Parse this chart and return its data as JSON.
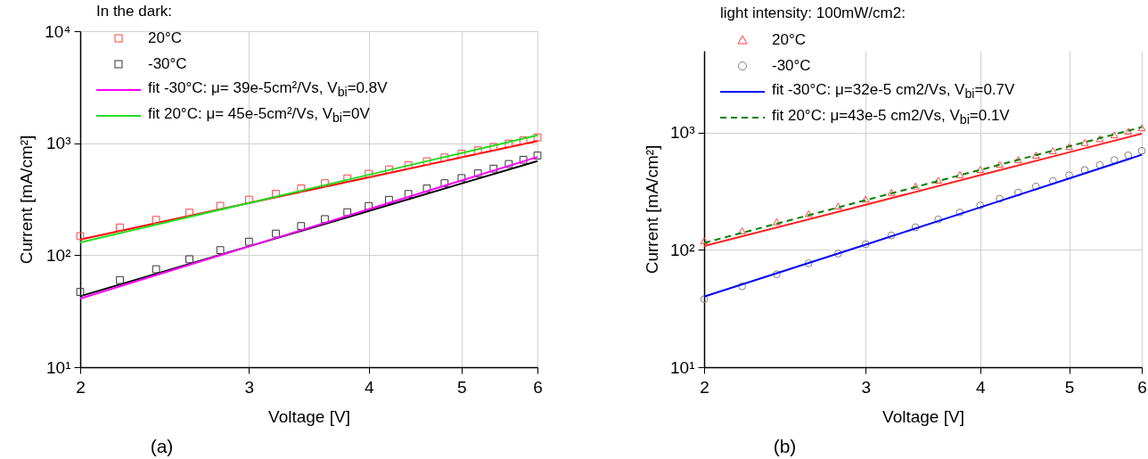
{
  "chart_data": [
    {
      "type": "scatter",
      "title": "(a)",
      "xlabel": "Voltage [V]",
      "ylabel": "Current [mA/cm²]",
      "legend_title": "In the dark:",
      "legend": "top left",
      "grid": true,
      "log": "xy",
      "xlim": [
        2,
        6
      ],
      "xticks": [
        2,
        3,
        4,
        5,
        6
      ],
      "ylim": [
        10,
        10000
      ],
      "yticks": [
        {
          "value": 10,
          "label": "10¹"
        },
        {
          "value": 100,
          "label": "10²"
        },
        {
          "value": 1000,
          "label": "10³"
        },
        {
          "value": 10000,
          "label": "10⁴"
        }
      ],
      "series": [
        {
          "type": "line",
          "color": "#ff0000",
          "x": [
            2,
            3,
            4,
            5,
            6
          ],
          "values": [
            138,
            292,
            495,
            748,
            1047
          ]
        },
        {
          "type": "line",
          "color": "#000000",
          "x": [
            2,
            3,
            4,
            5,
            6
          ],
          "values": [
            43,
            120,
            248,
            437,
            693
          ]
        },
        {
          "name": "20°C",
          "marker": "square",
          "color": "#ff4040",
          "x": [
            2.0,
            2.2,
            2.4,
            2.6,
            2.8,
            3.0,
            3.2,
            3.4,
            3.6,
            3.8,
            4.0,
            4.2,
            4.4,
            4.6,
            4.8,
            5.0,
            5.2,
            5.4,
            5.6,
            5.8,
            6.0
          ],
          "values": [
            148,
            177,
            207,
            240,
            276,
            313,
            353,
            395,
            439,
            485,
            533,
            583,
            635,
            690,
            746,
            805,
            865,
            927,
            993,
            1059,
            1127
          ]
        },
        {
          "name": "-30°C",
          "marker": "square",
          "color": "#333333",
          "x": [
            2.0,
            2.2,
            2.4,
            2.6,
            2.8,
            3.0,
            3.2,
            3.4,
            3.6,
            3.8,
            4.0,
            4.2,
            4.4,
            4.6,
            4.8,
            5.0,
            5.2,
            5.4,
            5.6,
            5.8,
            6.0
          ],
          "values": [
            47,
            60,
            75,
            92,
            111,
            132,
            156,
            182,
            210,
            242,
            275,
            312,
            352,
            394,
            439,
            488,
            538,
            593,
            652,
            711,
            776
          ]
        },
        {
          "name": "fit -30°C: μ= 39e-5cm²/Vs, V$_{bi}$=0.8V",
          "type": "line",
          "line_style": "solid",
          "color": "#ff00ff",
          "x": [
            2,
            3,
            4,
            5,
            6
          ],
          "values": [
            41,
            120,
            257,
            465,
            753
          ]
        },
        {
          "name": "fit 20°C: μ= 45e-5cm²/Vs, V$_{bi}$=0V",
          "type": "line",
          "line_style": "solid",
          "color": "#22dd22",
          "x": [
            2,
            3,
            4,
            5,
            6
          ],
          "values": [
            130,
            293,
            522,
            817,
            1178
          ]
        }
      ]
    },
    {
      "type": "scatter",
      "title": "(b)",
      "xlabel": "Voltage [V]",
      "ylabel": "Current [mA/cm²]",
      "legend_title": "light intensity: 100mW/cm2:",
      "legend": "top left",
      "grid": true,
      "log": "xy",
      "xlim": [
        2,
        6
      ],
      "xticks": [
        2,
        3,
        4,
        5,
        6
      ],
      "ylim": [
        10,
        5000
      ],
      "yticks": [
        {
          "value": 10,
          "label": "10¹"
        },
        {
          "value": 100,
          "label": "10²"
        },
        {
          "value": 1000,
          "label": "10³"
        }
      ],
      "series": [
        {
          "type": "line",
          "color": "#ff2020",
          "x": [
            2,
            3,
            4,
            5,
            6
          ],
          "values": [
            108,
            243,
            435,
            681,
            982
          ]
        },
        {
          "name": "20°C",
          "marker": "triangle",
          "color": "#ff4040",
          "x": [
            2.0,
            2.2,
            2.4,
            2.6,
            2.8,
            3.0,
            3.2,
            3.4,
            3.6,
            3.8,
            4.0,
            4.2,
            4.4,
            4.6,
            4.8,
            5.0,
            5.2,
            5.4,
            5.6,
            5.8,
            6.0
          ],
          "values": [
            120,
            146,
            174,
            204,
            237,
            272,
            310,
            351,
            394,
            439,
            486,
            537,
            590,
            644,
            703,
            762,
            826,
            891,
            959,
            1028,
            1102
          ]
        },
        {
          "name": "-30°C",
          "marker": "circle",
          "color": "#808080",
          "x": [
            2.0,
            2.2,
            2.4,
            2.6,
            2.8,
            3.0,
            3.2,
            3.4,
            3.6,
            3.8,
            4.0,
            4.2,
            4.4,
            4.6,
            4.8,
            5.0,
            5.2,
            5.4,
            5.6,
            5.8,
            6.0
          ],
          "values": [
            38,
            49,
            62,
            77,
            93,
            112,
            133,
            156,
            182,
            209,
            240,
            273,
            309,
            348,
            388,
            434,
            481,
            531,
            585,
            641,
            701
          ]
        },
        {
          "name": "fit -30°C: μ=32e-5 cm2/Vs, V$_{bi}$=0.7V",
          "type": "line",
          "line_style": "solid",
          "color": "#0000ff",
          "x": [
            2,
            3,
            4,
            5,
            6
          ],
          "values": [
            40,
            111,
            231,
            407,
            649
          ]
        },
        {
          "name": "fit 20°C: μ=43e-5 cm2/Vs, V$_{bi}$=0.1V",
          "type": "line",
          "line_style": "dashed",
          "color": "#008000",
          "x": [
            2,
            3,
            4,
            5,
            6
          ],
          "values": [
            115,
            266,
            482,
            766,
            1117
          ]
        }
      ]
    }
  ]
}
